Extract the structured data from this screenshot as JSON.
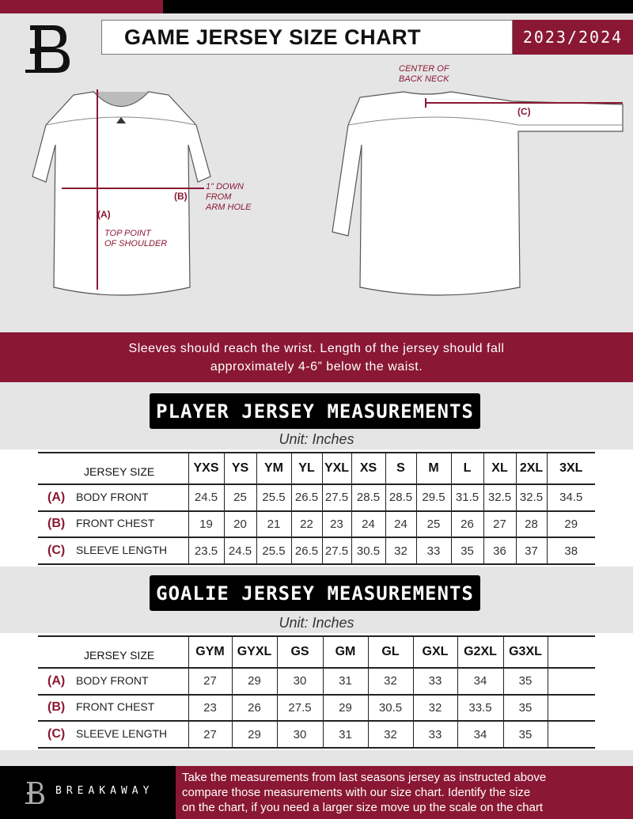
{
  "header": {
    "title": "GAME JERSEY SIZE CHART",
    "season": "2023/2024"
  },
  "diagram": {
    "center_back_neck": [
      "CENTER OF",
      "BACK NECK"
    ],
    "label_a": "(A)",
    "label_b": "(B)",
    "label_c": "(C)",
    "b_note": [
      "1\" DOWN",
      "FROM",
      "ARM HOLE"
    ],
    "a_note": [
      "TOP POINT",
      "OF SHOULDER"
    ]
  },
  "banner": {
    "line1": "Sleeves should reach the wrist. Length of the jersey should fall",
    "line2": "approximately 4-6” below the waist."
  },
  "player": {
    "title": "PLAYER JERSEY MEASUREMENTS",
    "unit": "Unit: Inches",
    "header_label": "JERSEY SIZE",
    "sizes": [
      "YXS",
      "YS",
      "YM",
      "YL",
      "YXL",
      "XS",
      "S",
      "M",
      "L",
      "XL",
      "2XL",
      "3XL"
    ],
    "rows": [
      {
        "letter": "(A)",
        "label": "BODY FRONT",
        "values": [
          "24.5",
          "25",
          "25.5",
          "26.5",
          "27.5",
          "28.5",
          "28.5",
          "29.5",
          "31.5",
          "32.5",
          "32.5",
          "34.5"
        ]
      },
      {
        "letter": "(B)",
        "label": "FRONT CHEST",
        "values": [
          "19",
          "20",
          "21",
          "22",
          "23",
          "24",
          "24",
          "25",
          "26",
          "27",
          "28",
          "29"
        ]
      },
      {
        "letter": "(C)",
        "label": "SLEEVE LENGTH",
        "values": [
          "23.5",
          "24.5",
          "25.5",
          "26.5",
          "27.5",
          "30.5",
          "32",
          "33",
          "35",
          "36",
          "37",
          "38"
        ]
      }
    ]
  },
  "goalie": {
    "title": "GOALIE JERSEY MEASUREMENTS",
    "unit": "Unit: Inches",
    "header_label": "JERSEY SIZE",
    "sizes": [
      "GYM",
      "GYXL",
      "GS",
      "GM",
      "GL",
      "GXL",
      "G2XL",
      "G3XL",
      ""
    ],
    "rows": [
      {
        "letter": "(A)",
        "label": "BODY FRONT",
        "values": [
          "27",
          "29",
          "30",
          "31",
          "32",
          "33",
          "34",
          "35",
          ""
        ]
      },
      {
        "letter": "(B)",
        "label": "FRONT CHEST",
        "values": [
          "23",
          "26",
          "27.5",
          "29",
          "30.5",
          "32",
          "33.5",
          "35",
          ""
        ]
      },
      {
        "letter": "(C)",
        "label": "SLEEVE LENGTH",
        "values": [
          "27",
          "29",
          "30",
          "31",
          "32",
          "33",
          "34",
          "35",
          ""
        ]
      }
    ]
  },
  "footer": {
    "brand": "BREAKAWAY",
    "text": [
      "Take the measurements from last seasons jersey as instructed above",
      "compare those measurements  with our size chart. Identify the size",
      "on the chart, if you need a larger size move up the scale on the chart"
    ]
  },
  "colors": {
    "brand": "#8a1834",
    "black": "#000000"
  }
}
